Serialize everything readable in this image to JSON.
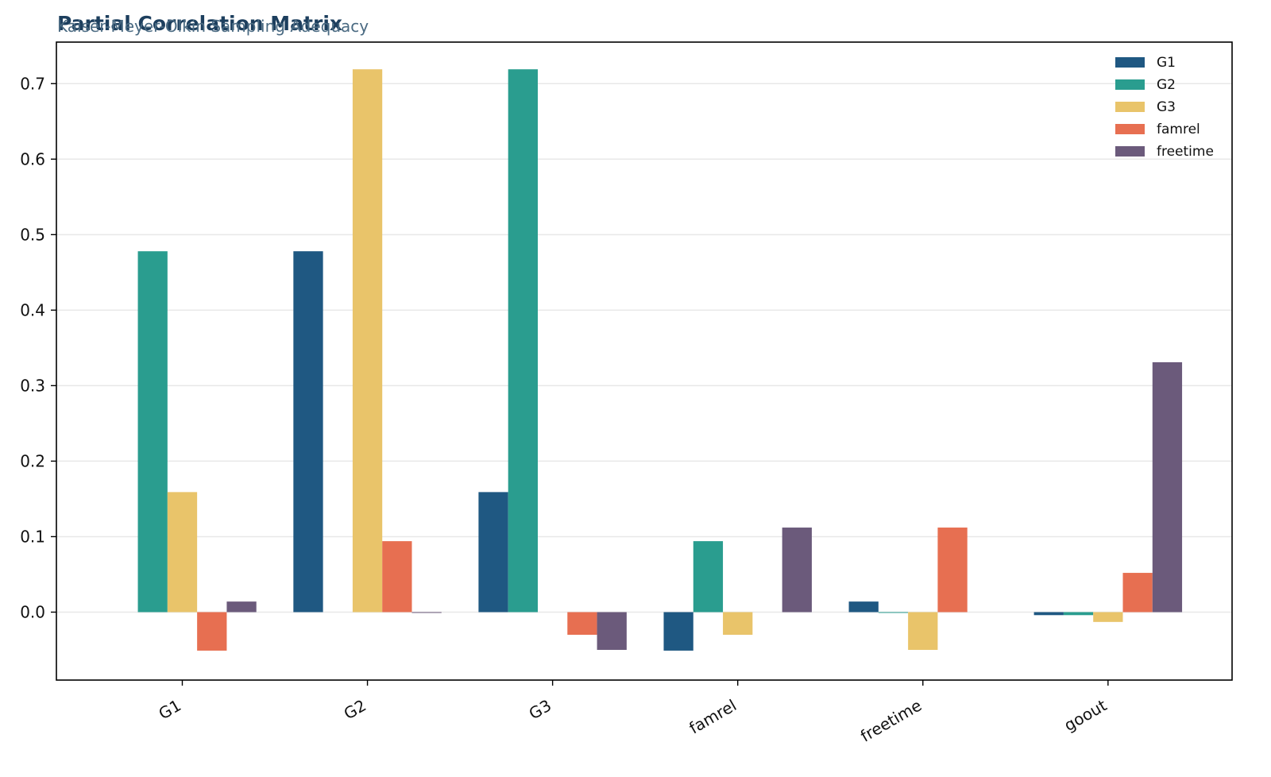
{
  "chart_data": {
    "type": "bar",
    "title": "Partial Correlation Matrix",
    "subtitle": "Kaiser-Meyer-Olkin Sampling Adequacy",
    "xlabel": "",
    "ylabel": "",
    "categories": [
      "G1",
      "G2",
      "G3",
      "famrel",
      "freetime",
      "goout"
    ],
    "series": [
      {
        "name": "G1",
        "color": "#1f5882",
        "values": [
          0,
          0.478,
          0.159,
          -0.051,
          0.014,
          -0.004
        ]
      },
      {
        "name": "G2",
        "color": "#2a9d8f",
        "values": [
          0.478,
          0,
          0.719,
          0.094,
          -0.001,
          -0.004
        ]
      },
      {
        "name": "G3",
        "color": "#e9c46a",
        "values": [
          0.159,
          0.719,
          0,
          -0.03,
          -0.05,
          -0.013
        ]
      },
      {
        "name": "famrel",
        "color": "#e76f51",
        "values": [
          -0.051,
          0.094,
          -0.03,
          0,
          0.112,
          0.052
        ]
      },
      {
        "name": "freetime",
        "color": "#6b5a7b",
        "values": [
          0.014,
          -0.001,
          -0.05,
          0.112,
          0,
          0.331
        ]
      }
    ],
    "ylim": [
      -0.09,
      0.755
    ],
    "yticks": [
      "0.0",
      "0.1",
      "0.2",
      "0.3",
      "0.4",
      "0.5",
      "0.6",
      "0.7"
    ],
    "grid": "horizontal",
    "legend_position": "top-right"
  }
}
